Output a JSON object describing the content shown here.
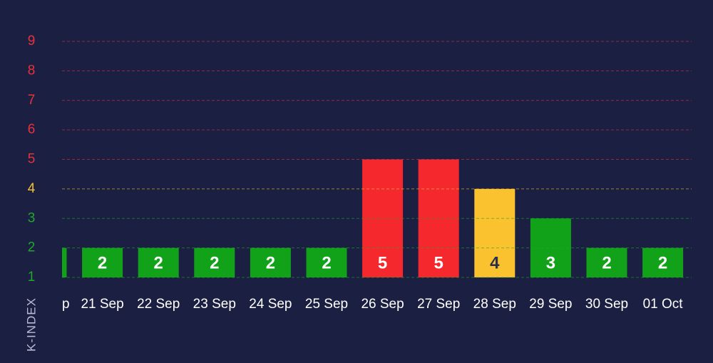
{
  "chart_data": {
    "type": "bar",
    "y_axis_label": "K-INDEX",
    "categories": [
      "p",
      "21 Sep",
      "22 Sep",
      "23 Sep",
      "24 Sep",
      "25 Sep",
      "26 Sep",
      "27 Sep",
      "28 Sep",
      "29 Sep",
      "30 Sep",
      "01 Oct"
    ],
    "values": [
      2,
      2,
      2,
      2,
      2,
      2,
      5,
      5,
      4,
      3,
      2,
      2
    ],
    "colors": [
      "#12a21a",
      "#12a21a",
      "#12a21a",
      "#12a21a",
      "#12a21a",
      "#12a21a",
      "#f5282d",
      "#f5282d",
      "#f9c22e",
      "#12a21a",
      "#12a21a",
      "#12a21a"
    ],
    "label_colors": [
      "#ffffff",
      "#ffffff",
      "#ffffff",
      "#ffffff",
      "#ffffff",
      "#ffffff",
      "#ffffff",
      "#ffffff",
      "#2b2f4a",
      "#ffffff",
      "#ffffff",
      "#ffffff"
    ],
    "ylim": [
      1,
      9
    ],
    "yticks": [
      1,
      2,
      3,
      4,
      5,
      6,
      7,
      8,
      9
    ],
    "ytick_colors": [
      "#1fa82a",
      "#1fa82a",
      "#1fa82a",
      "#f1c232",
      "#e8323a",
      "#e8323a",
      "#e8323a",
      "#e8323a",
      "#e8323a"
    ],
    "grid": true
  }
}
